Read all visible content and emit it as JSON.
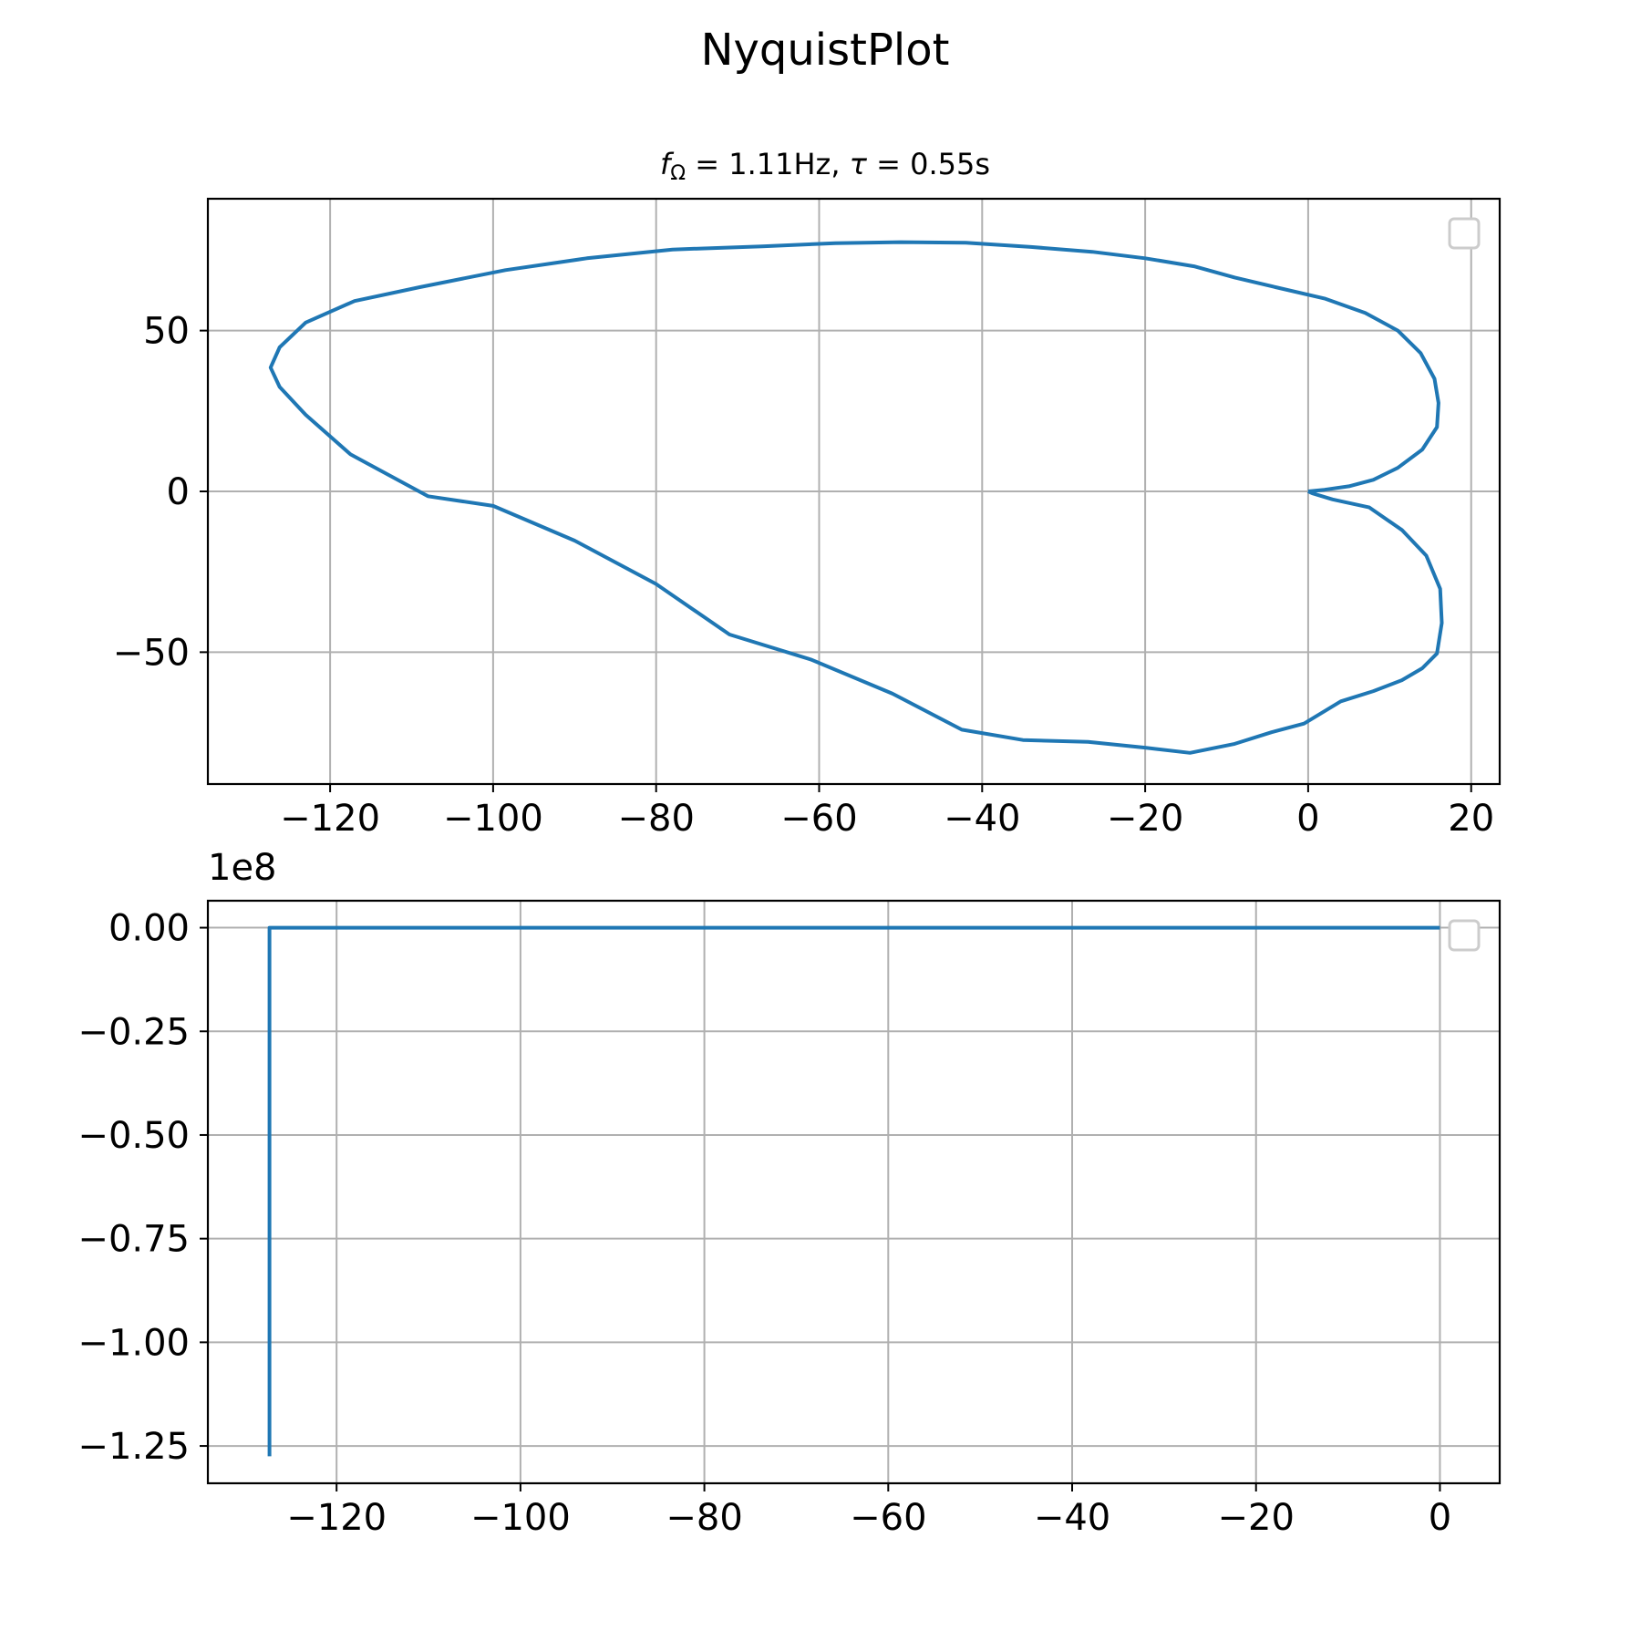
{
  "figure": {
    "title": "NyquistPlot",
    "line_color": "#1f77b4"
  },
  "chart_data": [
    {
      "type": "line",
      "title": "f_Ω = 1.11Hz, τ = 0.55s",
      "title_parts": {
        "f_symbol": "f",
        "f_subscript": "Ω",
        "f_value": " = 1.11Hz, ",
        "tau_symbol": "τ",
        "tau_value": " = 0.55s"
      },
      "xlabel": "",
      "ylabel": "",
      "xlim": [
        -135,
        23.5
      ],
      "ylim": [
        -91,
        91
      ],
      "xticks": [
        -120,
        -100,
        -80,
        -60,
        -40,
        -20,
        0,
        20
      ],
      "xtick_labels": [
        "−120",
        "−100",
        "−80",
        "−60",
        "−40",
        "−20",
        "0",
        "20"
      ],
      "yticks": [
        50,
        0,
        -50
      ],
      "ytick_labels": [
        "50",
        "0",
        "−50"
      ],
      "grid": true,
      "legend": "top-right, empty",
      "series": [
        {
          "x": [
            0,
            2,
            5,
            8,
            11,
            14,
            15.8,
            16,
            15.5,
            13.8,
            11,
            7,
            2,
            -4,
            -9,
            -14,
            -20,
            -26.5,
            -34,
            -42,
            -50,
            -58,
            -67,
            -78,
            -88.5,
            -98.5,
            -109,
            -117,
            -123,
            -126.2,
            -127.3,
            -126.2,
            -123,
            -117.5,
            -108,
            -100,
            -90,
            -80,
            -71,
            -61,
            -51,
            -42.5,
            -35,
            -27,
            -20,
            -14.5,
            -9,
            -4.5,
            -0.5,
            4,
            8,
            11.5,
            14,
            15.8,
            16.4,
            16.2,
            14.5,
            11.5,
            7.5,
            3,
            0.5,
            0
          ],
          "y": [
            0,
            0.5,
            1.6,
            3.6,
            7.3,
            13,
            20,
            27.5,
            35,
            43,
            50,
            55.5,
            60,
            63.5,
            66.5,
            70,
            72.5,
            74.5,
            76,
            77.3,
            77.5,
            77.2,
            76.2,
            75.2,
            72.5,
            68.8,
            63.5,
            59.2,
            52.5,
            44.8,
            38.5,
            32.5,
            23.8,
            11.5,
            -1.5,
            -4.5,
            -15.3,
            -28.8,
            -44.5,
            -52.3,
            -62.9,
            -74.1,
            -77.3,
            -77.9,
            -79.7,
            -81.3,
            -78.5,
            -74.9,
            -72.2,
            -65.3,
            -62.1,
            -58.7,
            -55,
            -50.4,
            -40.9,
            -30.3,
            -20,
            -12,
            -5,
            -2.5,
            -0.6,
            0
          ]
        }
      ]
    },
    {
      "type": "line",
      "title": "",
      "xlabel": "",
      "ylabel": "",
      "y_offset_label": "1e8",
      "xlim": [
        -134,
        6.5
      ],
      "ylim": [
        -1.34,
        0.065
      ],
      "xticks": [
        -120,
        -100,
        -80,
        -60,
        -40,
        -20,
        0
      ],
      "xtick_labels": [
        "−120",
        "−100",
        "−80",
        "−60",
        "−40",
        "−20",
        "0"
      ],
      "yticks": [
        0,
        -0.25,
        -0.5,
        -0.75,
        -1,
        -1.25
      ],
      "ytick_labels": [
        "0.00",
        "−0.25",
        "−0.50",
        "−0.75",
        "−1.00",
        "−1.25"
      ],
      "grid": true,
      "legend": "top-right, empty",
      "series": [
        {
          "x": [
            -127.3,
            -127.3,
            0
          ],
          "y": [
            -1.275,
            0,
            0
          ]
        }
      ]
    }
  ]
}
